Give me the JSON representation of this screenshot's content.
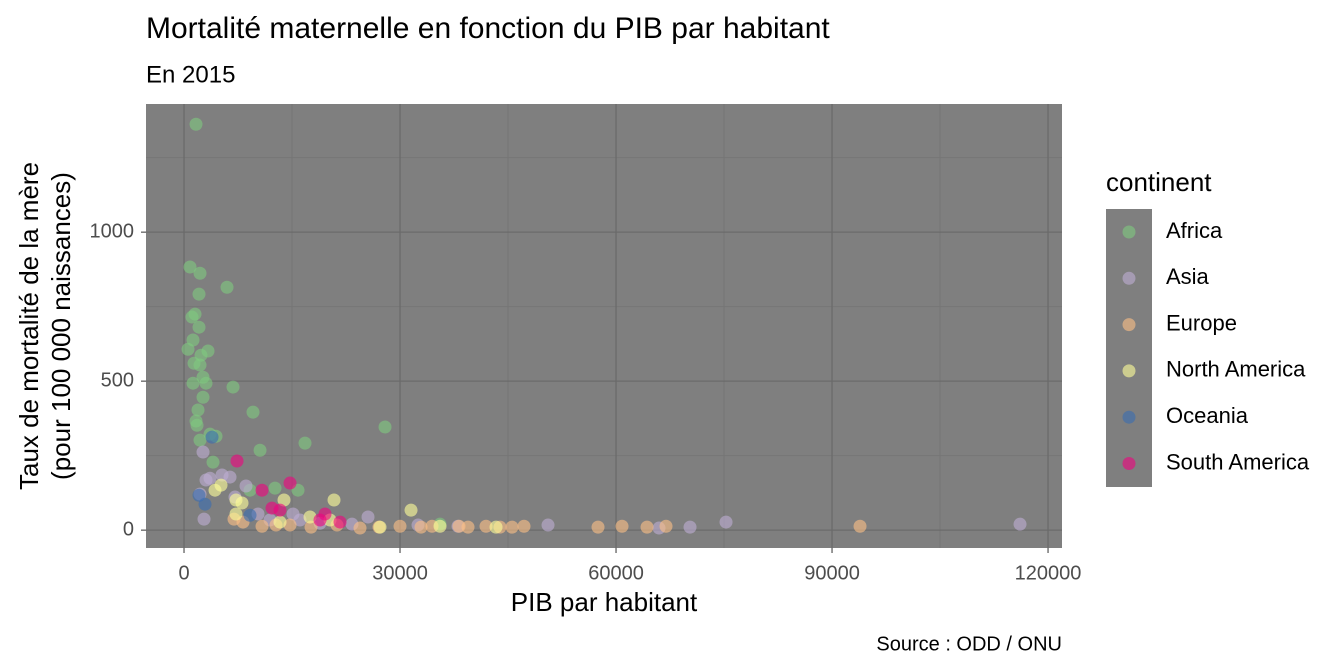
{
  "chart_data": {
    "type": "scatter",
    "title": "Mortalité maternelle en fonction du PIB par habitant",
    "subtitle": "En 2015",
    "caption": "Source : ODD / ONU",
    "x_label": "PIB par habitant",
    "y_label": [
      "Taux de mortalité de la mère",
      "(pour 100 000 naissances)"
    ],
    "legend_title": "continent",
    "xlim": [
      -5280,
      121940
    ],
    "ylim": [
      -60,
      1430
    ],
    "xticks": [
      0,
      30000,
      60000,
      90000,
      120000
    ],
    "yticks": [
      0,
      500,
      1000
    ],
    "xminor": [
      15000,
      45000,
      75000,
      105000
    ],
    "yminor": [
      250,
      750,
      1250
    ],
    "grid": true,
    "legend_position": "right",
    "series": [
      {
        "name": "Africa",
        "color": "#7fc97f",
        "x": [
          1667,
          833,
          2222,
          2083,
          5972,
          1111,
          1528,
          2083,
          556,
          1250,
          3333,
          2361,
          1389,
          2222,
          2639,
          3056,
          1250,
          6806,
          2639,
          1944,
          9583,
          1667,
          1806,
          3611,
          4444,
          16806,
          27917,
          10556,
          2222,
          4028,
          15833,
          12639,
          35556,
          9167
        ],
        "y": [
          1362,
          883,
          862,
          792,
          815,
          715,
          725,
          681,
          607,
          638,
          601,
          587,
          560,
          554,
          513,
          493,
          493,
          480,
          446,
          403,
          396,
          366,
          352,
          322,
          315,
          292,
          346,
          268,
          302,
          228,
          134,
          141,
          20,
          134
        ]
      },
      {
        "name": "Asia",
        "color": "#beaed4",
        "x": [
          2639,
          2222,
          3056,
          3611,
          5278,
          6389,
          8611,
          2778,
          7083,
          10278,
          15139,
          16111,
          25556,
          32500,
          38056,
          50556,
          65972,
          70278,
          75278,
          116111,
          23333,
          18889,
          11944
        ],
        "y": [
          262,
          121,
          168,
          174,
          185,
          178,
          148,
          37,
          111,
          54,
          54,
          34,
          44,
          17,
          13,
          17,
          7,
          10,
          27,
          20,
          20,
          23,
          34
        ]
      },
      {
        "name": "Europe",
        "color": "#fdc086",
        "x": [
          6944,
          10833,
          12778,
          17639,
          21250,
          24444,
          27083,
          30000,
          32917,
          34444,
          38194,
          39444,
          41944,
          43889,
          45556,
          47222,
          57500,
          60833,
          64306,
          66944,
          93889,
          14722,
          8194
        ],
        "y": [
          37,
          13,
          17,
          10,
          17,
          7,
          10,
          13,
          10,
          13,
          13,
          10,
          13,
          10,
          10,
          13,
          10,
          13,
          10,
          13,
          13,
          17,
          27
        ]
      },
      {
        "name": "North America",
        "color": "#ffff99",
        "x": [
          4306,
          5139,
          7222,
          8056,
          7222,
          13889,
          20833,
          31528,
          17500,
          13333,
          20278,
          35556,
          43333,
          27222
        ],
        "y": [
          134,
          151,
          101,
          91,
          54,
          101,
          101,
          67,
          44,
          27,
          34,
          13,
          10,
          10
        ]
      },
      {
        "name": "Oceania",
        "color": "#386cb0",
        "x": [
          2083,
          2917,
          3889,
          9167
        ],
        "y": [
          117,
          87,
          312,
          50
        ]
      },
      {
        "name": "South America",
        "color": "#f0027f",
        "x": [
          7361,
          14722,
          10833,
          13333,
          12222,
          19583,
          21667,
          18889
        ],
        "y": [
          232,
          158,
          134,
          67,
          74,
          54,
          27,
          34
        ]
      }
    ]
  }
}
